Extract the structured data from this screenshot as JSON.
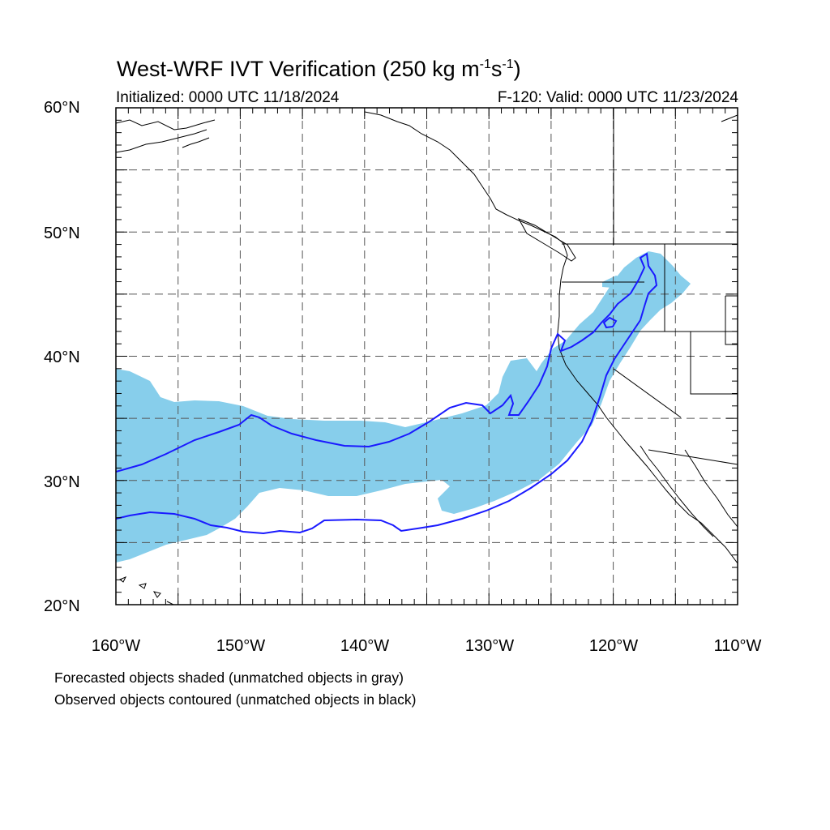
{
  "title": {
    "main": "West-WRF IVT Verification (250 kg m",
    "exp1": "-1",
    "mid": "s",
    "exp2": "-1",
    "end": ")"
  },
  "subtitle_left": "Initialized: 0000 UTC 11/18/2024",
  "subtitle_right": "F-120: Valid: 0000 UTC 11/23/2024",
  "lat_labels": [
    "60°N",
    "50°N",
    "40°N",
    "30°N",
    "20°N"
  ],
  "lon_labels": [
    "160°W",
    "150°W",
    "140°W",
    "130°W",
    "120°W",
    "110°W"
  ],
  "notes": [
    "Forecasted objects shaded (unmatched objects in gray)",
    "Observed objects contoured (unmatched objects in black)"
  ],
  "colors": {
    "forecast_fill": "#87ceeb",
    "observed_contour": "#1a1aff",
    "coastline": "#000000",
    "grid": "#555555"
  },
  "map": {
    "lon_range": [
      -160,
      -110
    ],
    "lat_range": [
      20,
      60
    ],
    "grid_step_deg": 5,
    "grid_style": "dashed",
    "projection": "cylindrical-equidistant"
  }
}
